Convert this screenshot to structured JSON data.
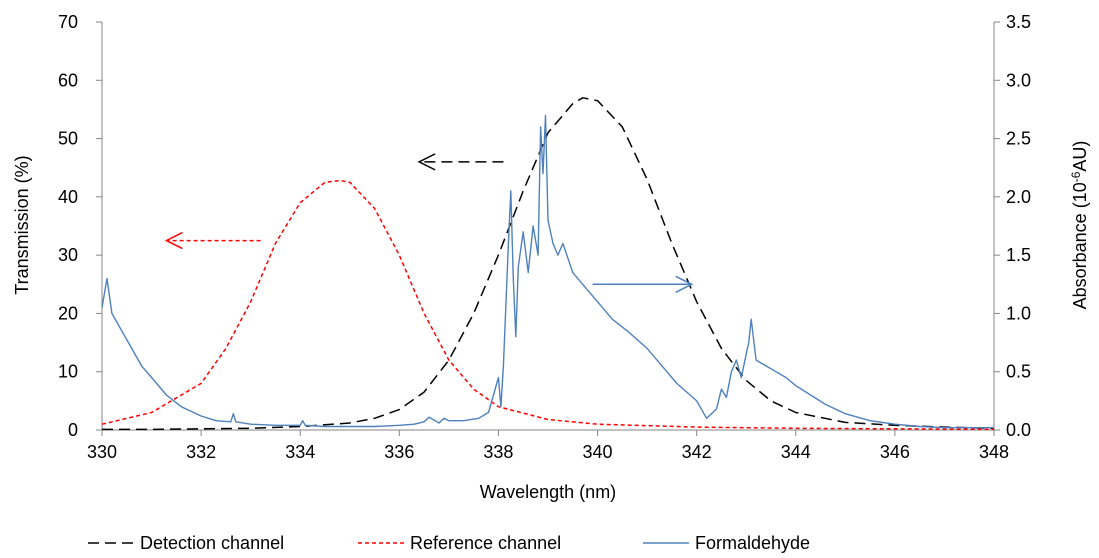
{
  "chart_data": {
    "type": "line",
    "xlabel": "Wavelength (nm)",
    "ylabel_left": "Transmission (%)",
    "ylabel_right": {
      "prefix": "Absorbance  (10",
      "exponent": "-6",
      "suffix": "AU)"
    },
    "xlim": [
      330,
      348
    ],
    "ylim_left": [
      0,
      70
    ],
    "ylim_right": [
      0.0,
      3.5
    ],
    "x_ticks": [
      "330",
      "332",
      "334",
      "336",
      "338",
      "340",
      "342",
      "344",
      "346",
      "348"
    ],
    "y_left_ticks": [
      "0",
      "10",
      "20",
      "30",
      "40",
      "50",
      "60",
      "70"
    ],
    "y_right_ticks": [
      "0.0",
      "0.5",
      "1.0",
      "1.5",
      "2.0",
      "2.5",
      "3.0",
      "3.5"
    ],
    "grid": false,
    "legend_position": "bottom",
    "series": [
      {
        "name": "Detection channel",
        "axis": "left",
        "color": "#000000",
        "style": "dashed",
        "x": [
          330,
          331,
          332,
          333,
          334,
          335,
          335.5,
          336,
          336.5,
          337,
          337.5,
          338,
          338.5,
          339,
          339.5,
          339.7,
          340,
          340.5,
          341,
          341.5,
          342,
          342.5,
          343,
          343.5,
          344,
          345,
          346,
          347,
          348
        ],
        "y": [
          0.1,
          0.1,
          0.2,
          0.3,
          0.6,
          1.2,
          2.0,
          3.5,
          6.5,
          12,
          20,
          30,
          41,
          51,
          56,
          57,
          56.5,
          52,
          43,
          32,
          22,
          14,
          8.5,
          5,
          3,
          1.3,
          0.8,
          0.5,
          0.3
        ]
      },
      {
        "name": "Reference channel",
        "axis": "left",
        "color": "#ff0000",
        "style": "dotted",
        "x": [
          330,
          331,
          332,
          332.5,
          333,
          333.5,
          334,
          334.5,
          334.8,
          335,
          335.5,
          336,
          336.5,
          337,
          337.5,
          338,
          339,
          340,
          342,
          344,
          346,
          348
        ],
        "y": [
          1,
          3,
          8,
          14,
          22,
          32,
          39,
          42.5,
          42.8,
          42.5,
          38,
          30,
          20,
          12,
          7,
          4,
          1.8,
          1,
          0.5,
          0.3,
          0.2,
          0.1
        ]
      },
      {
        "name": "Formaldehyde",
        "axis": "right",
        "color": "#4f81bd",
        "style": "solid",
        "x": [
          330,
          330.1,
          330.2,
          330.4,
          330.6,
          330.8,
          331,
          331.3,
          331.6,
          332,
          332.3,
          332.6,
          332.65,
          332.7,
          333,
          333.5,
          334,
          334.05,
          334.1,
          334.5,
          335,
          335.5,
          336,
          336.3,
          336.5,
          336.6,
          336.8,
          336.9,
          337,
          337.3,
          337.6,
          337.8,
          337.9,
          338,
          338.05,
          338.1,
          338.2,
          338.25,
          338.3,
          338.35,
          338.4,
          338.5,
          338.6,
          338.7,
          338.8,
          338.85,
          338.9,
          338.95,
          339,
          339.1,
          339.2,
          339.3,
          339.5,
          339.7,
          340,
          340.3,
          340.6,
          341,
          341.3,
          341.6,
          342,
          342.2,
          342.4,
          342.5,
          342.6,
          342.7,
          342.8,
          342.9,
          343,
          343.05,
          343.1,
          343.2,
          343.4,
          343.6,
          343.8,
          344,
          344.3,
          344.6,
          345,
          345.5,
          346,
          346.5,
          347,
          347.5,
          348
        ],
        "y": [
          1.05,
          1.3,
          1.0,
          0.85,
          0.7,
          0.55,
          0.45,
          0.3,
          0.2,
          0.12,
          0.08,
          0.07,
          0.14,
          0.07,
          0.05,
          0.04,
          0.04,
          0.08,
          0.04,
          0.03,
          0.03,
          0.03,
          0.04,
          0.05,
          0.07,
          0.11,
          0.06,
          0.1,
          0.08,
          0.08,
          0.1,
          0.15,
          0.3,
          0.45,
          0.2,
          0.55,
          1.6,
          2.05,
          1.3,
          0.8,
          1.4,
          1.7,
          1.35,
          1.75,
          1.5,
          2.6,
          2.2,
          2.7,
          1.8,
          1.6,
          1.5,
          1.6,
          1.35,
          1.25,
          1.1,
          0.95,
          0.85,
          0.7,
          0.55,
          0.4,
          0.25,
          0.1,
          0.18,
          0.35,
          0.28,
          0.5,
          0.6,
          0.45,
          0.65,
          0.75,
          0.95,
          0.6,
          0.55,
          0.5,
          0.45,
          0.38,
          0.3,
          0.22,
          0.14,
          0.08,
          0.05,
          0.03,
          0.02,
          0.02,
          0.02
        ]
      }
    ],
    "annotations": [
      {
        "type": "arrow",
        "color": "#000000",
        "style": "dashed",
        "direction": "left",
        "x_from": 338.1,
        "x_to": 336.4,
        "y": 46,
        "axis": "left"
      },
      {
        "type": "arrow",
        "color": "#ff0000",
        "style": "dotted",
        "direction": "left",
        "x_from": 333.2,
        "x_to": 331.3,
        "y": 32.5,
        "axis": "left"
      },
      {
        "type": "arrow",
        "color": "#4f81bd",
        "style": "solid",
        "direction": "right",
        "x_from": 339.9,
        "x_to": 341.9,
        "y": 1.25,
        "axis": "right"
      }
    ]
  }
}
